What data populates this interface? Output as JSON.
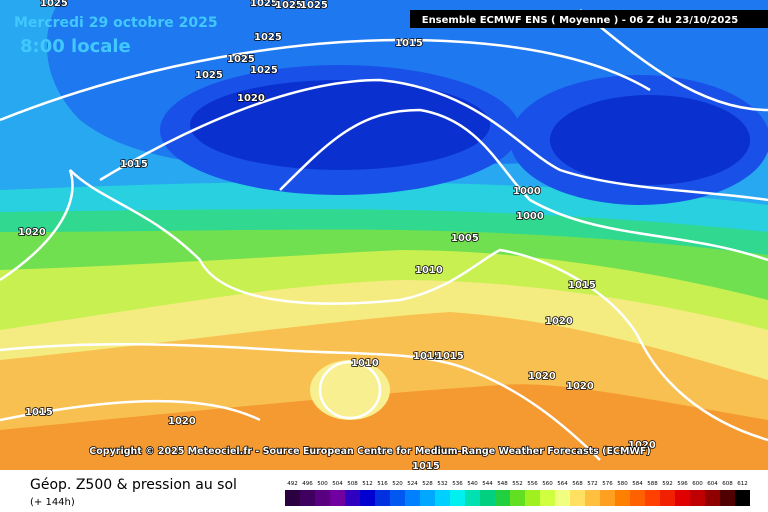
{
  "header": {
    "date": "Mercredi 29 octobre 2025",
    "time": "8:00 locale",
    "model": "Ensemble ECMWF ENS  ( Moyenne )  - 06 Z du 23/10/2025"
  },
  "copyright": "Copyright © 2025 Meteociel.fr - Source European Centre for Medium-Range Weather Forecasts (ECMWF)",
  "footer": {
    "title": "Géop. Z500 & pression au sol",
    "lead": "(+ 144h)"
  },
  "isobar_labels": [
    "1025",
    "1025",
    "1025",
    "1025",
    "1025",
    "1025",
    "1025",
    "1025",
    "1015",
    "1020",
    "1015",
    "1020",
    "1000",
    "1000",
    "1005",
    "1010",
    "1015",
    "1020",
    "1010",
    "1015",
    "1015",
    "1020",
    "1020",
    "1015",
    "1020",
    "1015",
    "1020"
  ],
  "scale": {
    "values": [
      492,
      496,
      500,
      504,
      508,
      512,
      516,
      520,
      524,
      528,
      532,
      536,
      540,
      544,
      548,
      552,
      556,
      560,
      564,
      568,
      572,
      576,
      580,
      584,
      588,
      592,
      596,
      600,
      604,
      608,
      612
    ],
    "colors": [
      "#2a0040",
      "#400060",
      "#580080",
      "#7000a0",
      "#3000c0",
      "#0000d0",
      "#0030e0",
      "#0058f0",
      "#0080ff",
      "#00a8ff",
      "#00d0ff",
      "#00f0f0",
      "#00e0b0",
      "#00d080",
      "#20d040",
      "#60e020",
      "#a0f020",
      "#d0ff40",
      "#f0ff80",
      "#ffe060",
      "#ffc040",
      "#ffa020",
      "#ff8000",
      "#ff6000",
      "#ff4000",
      "#f02000",
      "#e00000",
      "#c00000",
      "#900000",
      "#500000",
      "#000000"
    ]
  }
}
